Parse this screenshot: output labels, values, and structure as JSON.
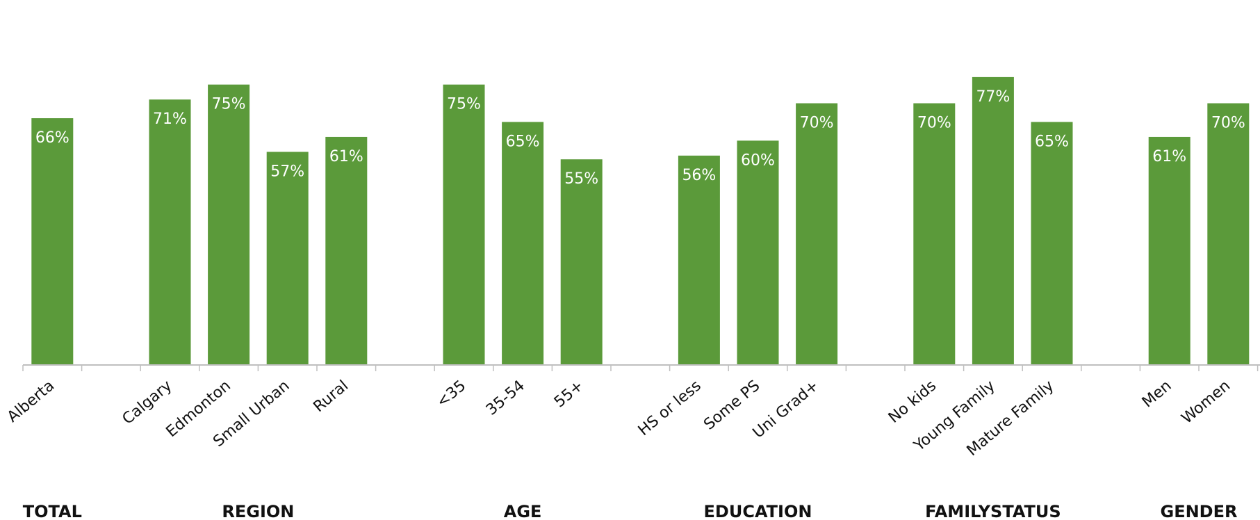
{
  "chart_data": {
    "type": "bar",
    "ylim": [
      0,
      100
    ],
    "color": "#5b9a3a",
    "value_label_color": "#ffffff",
    "categories": [
      "Alberta",
      "",
      "Calgary",
      "Edmonton",
      "Small Urban",
      "Rural",
      "",
      "<35",
      "35-54",
      "55+",
      "",
      "HS or less",
      "Some PS",
      "Uni Grad+",
      "",
      "No kids",
      "Young Family",
      "Mature Family",
      "",
      "Men",
      "Women"
    ],
    "values": [
      66,
      null,
      71,
      75,
      57,
      61,
      null,
      75,
      65,
      55,
      null,
      56,
      60,
      70,
      null,
      70,
      77,
      65,
      null,
      61,
      70
    ],
    "value_labels": [
      "66%",
      "",
      "71%",
      "75%",
      "57%",
      "61%",
      "",
      "75%",
      "65%",
      "55%",
      "",
      "56%",
      "60%",
      "70%",
      "",
      "70%",
      "77%",
      "65%",
      "",
      "61%",
      "70%"
    ],
    "groups": [
      {
        "label": "TOTAL",
        "categories": [
          "Alberta"
        ]
      },
      {
        "label": "REGION",
        "categories": [
          "Calgary",
          "Edmonton",
          "Small Urban",
          "Rural"
        ]
      },
      {
        "label": "AGE",
        "categories": [
          "<35",
          "35-54",
          "55+"
        ]
      },
      {
        "label": "EDUCATION",
        "categories": [
          "HS or less",
          "Some PS",
          "Uni Grad+"
        ]
      },
      {
        "label": "FAMILYSTATUS",
        "categories": [
          "No kids",
          "Young Family",
          "Mature Family"
        ]
      },
      {
        "label": "GENDER",
        "categories": [
          "Men",
          "Women"
        ]
      }
    ]
  }
}
